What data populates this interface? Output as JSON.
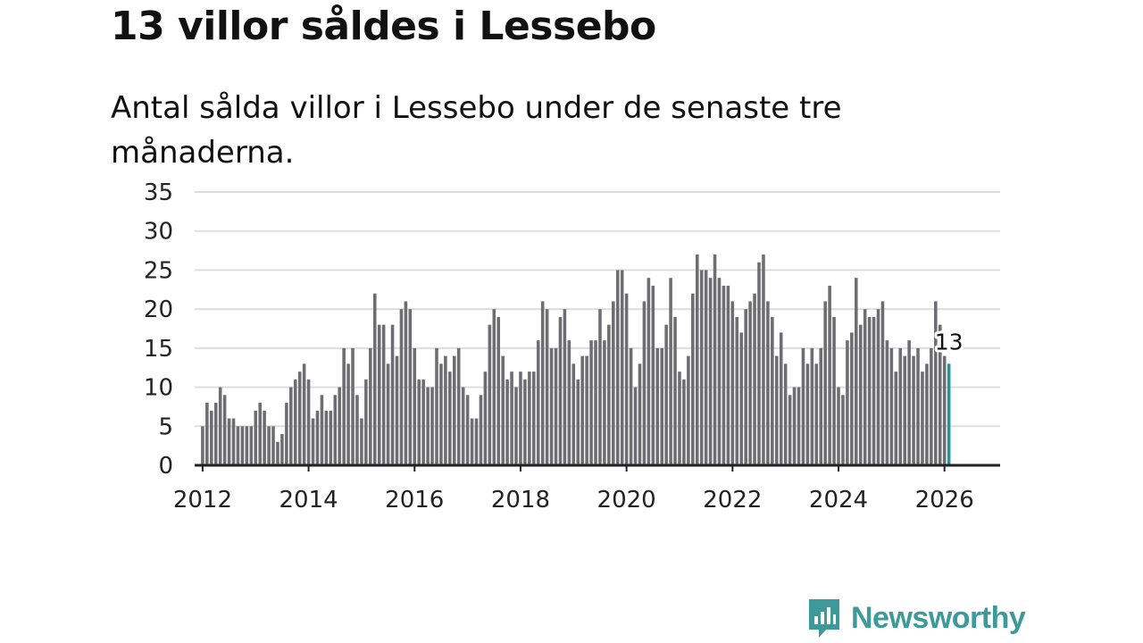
{
  "header": {
    "title": "13 villor såldes i Lessebo",
    "subtitle": "Antal sålda villor i Lessebo under de senaste tre månaderna."
  },
  "brand": {
    "name": "Newsworthy",
    "color": "#3d9a9a",
    "icon": "bar-chart-speech-bubble-icon"
  },
  "colors": {
    "bar": "#6e6d72",
    "highlight": "#1a9a96",
    "grid": "#dddddd",
    "axis": "#222222"
  },
  "chart_data": {
    "type": "bar",
    "title": "13 villor såldes i Lessebo",
    "subtitle": "Antal sålda villor i Lessebo under de senaste tre månaderna.",
    "xlabel": "",
    "ylabel": "",
    "ylim": [
      0,
      35
    ],
    "xlim": [
      2011.85,
      2027.05
    ],
    "grid": true,
    "y_ticks": [
      0,
      5,
      10,
      15,
      20,
      25,
      30,
      35
    ],
    "x_ticks": [
      2012,
      2014,
      2016,
      2018,
      2020,
      2022,
      2024,
      2026
    ],
    "series_start": {
      "year": 2012,
      "month": 1
    },
    "interval": "monthly",
    "values": [
      5,
      8,
      7,
      8,
      10,
      9,
      6,
      6,
      5,
      5,
      5,
      5,
      7,
      8,
      7,
      5,
      5,
      3,
      4,
      8,
      10,
      11,
      12,
      13,
      11,
      6,
      7,
      9,
      7,
      7,
      9,
      10,
      15,
      13,
      15,
      9,
      6,
      11,
      15,
      22,
      18,
      18,
      13,
      18,
      14,
      20,
      21,
      20,
      15,
      11,
      11,
      10,
      10,
      15,
      13,
      14,
      12,
      14,
      15,
      10,
      9,
      6,
      6,
      9,
      12,
      18,
      20,
      19,
      14,
      11,
      12,
      10,
      12,
      11,
      12,
      12,
      16,
      21,
      20,
      15,
      15,
      19,
      20,
      16,
      13,
      11,
      14,
      14,
      16,
      16,
      20,
      16,
      18,
      21,
      25,
      25,
      22,
      15,
      10,
      13,
      21,
      24,
      23,
      15,
      15,
      18,
      24,
      19,
      12,
      11,
      14,
      22,
      27,
      25,
      25,
      24,
      27,
      24,
      23,
      23,
      21,
      19,
      17,
      20,
      21,
      22,
      26,
      27,
      21,
      19,
      14,
      17,
      13,
      9,
      10,
      10,
      15,
      13,
      15,
      13,
      15,
      21,
      23,
      19,
      10,
      9,
      16,
      17,
      24,
      18,
      20,
      19,
      19,
      20,
      21,
      16,
      15,
      12,
      15,
      14,
      16,
      14,
      15,
      12,
      13,
      15,
      21,
      18,
      14,
      13
    ],
    "highlight": {
      "index_from_end": 0,
      "label": "13"
    }
  }
}
